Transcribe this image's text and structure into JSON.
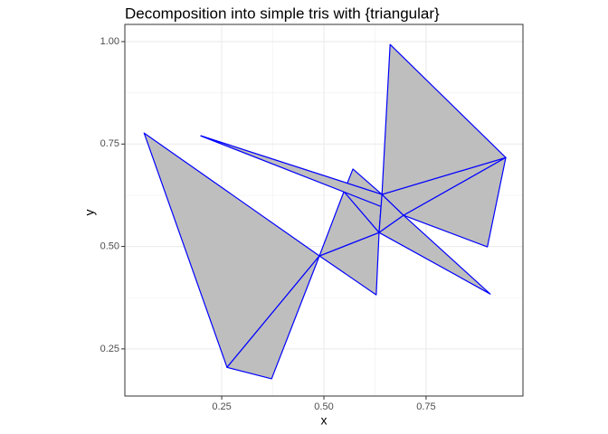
{
  "chart_data": {
    "type": "polygon",
    "title": "Decomposition into simple tris with {triangular}",
    "xlabel": "x",
    "ylabel": "y",
    "xlim": [
      0.013,
      0.987
    ],
    "ylim": [
      0.135,
      1.042
    ],
    "xticks": [
      0.25,
      {
        "value": 0.5,
        "label": "0.50"
      },
      0.75
    ],
    "yticks": [
      0.25,
      {
        "value": 0.5,
        "label": "0.50"
      },
      0.75,
      {
        "value": 1.0,
        "label": "1.00"
      }
    ],
    "grid": true,
    "fill": "#bebebe",
    "color": "#0000ff",
    "polygons": [
      {
        "x": [
          0.06,
          0.263,
          0.489
        ],
        "y": [
          0.777,
          0.205,
          0.477
        ]
      },
      {
        "x": [
          0.263,
          0.372,
          0.489
        ],
        "y": [
          0.205,
          0.177,
          0.477
        ]
      },
      {
        "x": [
          0.489,
          0.635,
          0.628
        ],
        "y": [
          0.477,
          0.534,
          0.382
        ]
      },
      {
        "x": [
          0.489,
          0.549,
          0.635
        ],
        "y": [
          0.477,
          0.634,
          0.534
        ]
      },
      {
        "x": [
          0.549,
          0.642,
          0.635
        ],
        "y": [
          0.634,
          0.627,
          0.534
        ]
      },
      {
        "x": [
          0.571,
          0.549,
          0.642
        ],
        "y": [
          0.689,
          0.634,
          0.627
        ]
      },
      {
        "x": [
          0.199,
          0.549,
          0.642
        ],
        "y": [
          0.77,
          0.634,
          0.627
        ]
      },
      {
        "x": [
          0.199,
          0.642,
          0.695
        ],
        "y": [
          0.77,
          0.627,
          0.576
        ]
      },
      {
        "x": [
          0.642,
          0.635,
          0.695
        ],
        "y": [
          0.627,
          0.534,
          0.576
        ]
      },
      {
        "x": [
          0.642,
          0.695,
          0.945
        ],
        "y": [
          0.627,
          0.576,
          0.717
        ]
      },
      {
        "x": [
          0.662,
          0.642,
          0.945
        ],
        "y": [
          0.993,
          0.627,
          0.717
        ]
      },
      {
        "x": [
          0.695,
          0.945,
          0.9
        ],
        "y": [
          0.576,
          0.717,
          0.499
        ]
      },
      {
        "x": [
          0.635,
          0.695,
          0.907
        ],
        "y": [
          0.534,
          0.576,
          0.384
        ]
      }
    ]
  }
}
